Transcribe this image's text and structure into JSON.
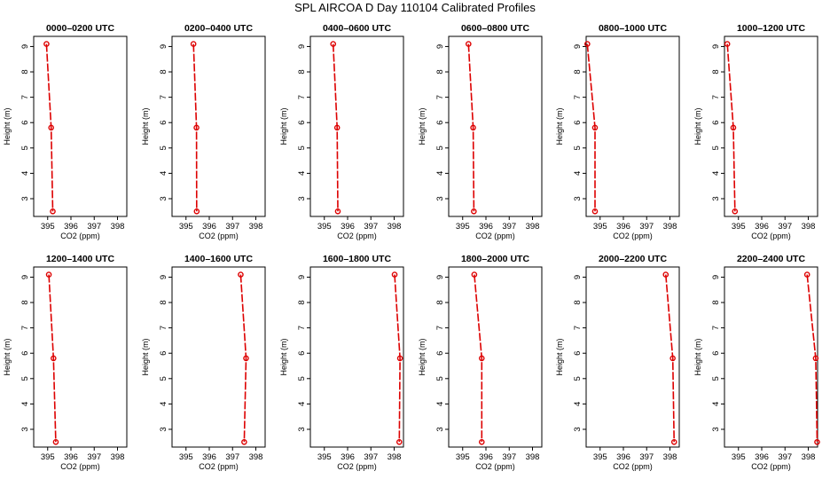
{
  "title": "SPL AIRCOA D  Day 110104  Calibrated Profiles",
  "colors": {
    "series": "#dd0000",
    "axis": "#000000",
    "background": "#ffffff"
  },
  "chart_data": [
    {
      "type": "line",
      "title": "0000–0200 UTC",
      "xlabel": "CO2 (ppm)",
      "ylabel": "Height (m)",
      "xlim": [
        394.4,
        398.4
      ],
      "ylim": [
        2.3,
        9.4
      ],
      "xticks": [
        395,
        396,
        397,
        398
      ],
      "yticks": [
        3,
        4,
        5,
        6,
        7,
        8,
        9
      ],
      "grid": false,
      "points": [
        {
          "x": 394.95,
          "y": 9.1
        },
        {
          "x": 395.15,
          "y": 5.8
        },
        {
          "x": 395.22,
          "y": 2.5
        }
      ]
    },
    {
      "type": "line",
      "title": "0200–0400 UTC",
      "xlabel": "CO2 (ppm)",
      "ylabel": "Height (m)",
      "xlim": [
        394.4,
        398.4
      ],
      "ylim": [
        2.3,
        9.4
      ],
      "xticks": [
        395,
        396,
        397,
        398
      ],
      "yticks": [
        3,
        4,
        5,
        6,
        7,
        8,
        9
      ],
      "grid": false,
      "points": [
        {
          "x": 395.32,
          "y": 9.1
        },
        {
          "x": 395.45,
          "y": 5.8
        },
        {
          "x": 395.46,
          "y": 2.5
        }
      ]
    },
    {
      "type": "line",
      "title": "0400–0600 UTC",
      "xlabel": "CO2 (ppm)",
      "ylabel": "Height (m)",
      "xlim": [
        394.4,
        398.4
      ],
      "ylim": [
        2.3,
        9.4
      ],
      "xticks": [
        395,
        396,
        397,
        398
      ],
      "yticks": [
        3,
        4,
        5,
        6,
        7,
        8,
        9
      ],
      "grid": false,
      "points": [
        {
          "x": 395.38,
          "y": 9.1
        },
        {
          "x": 395.55,
          "y": 5.8
        },
        {
          "x": 395.58,
          "y": 2.5
        }
      ]
    },
    {
      "type": "line",
      "title": "0600–0800 UTC",
      "xlabel": "CO2 (ppm)",
      "ylabel": "Height (m)",
      "xlim": [
        394.4,
        398.4
      ],
      "ylim": [
        2.3,
        9.4
      ],
      "xticks": [
        395,
        396,
        397,
        398
      ],
      "yticks": [
        3,
        4,
        5,
        6,
        7,
        8,
        9
      ],
      "grid": false,
      "points": [
        {
          "x": 395.25,
          "y": 9.1
        },
        {
          "x": 395.45,
          "y": 5.8
        },
        {
          "x": 395.48,
          "y": 2.5
        }
      ]
    },
    {
      "type": "line",
      "title": "0800–1000 UTC",
      "xlabel": "CO2 (ppm)",
      "ylabel": "Height (m)",
      "xlim": [
        394.4,
        398.4
      ],
      "ylim": [
        2.3,
        9.4
      ],
      "xticks": [
        395,
        396,
        397,
        398
      ],
      "yticks": [
        3,
        4,
        5,
        6,
        7,
        8,
        9
      ],
      "grid": false,
      "points": [
        {
          "x": 394.45,
          "y": 9.1
        },
        {
          "x": 394.78,
          "y": 5.8
        },
        {
          "x": 394.78,
          "y": 2.5
        }
      ]
    },
    {
      "type": "line",
      "title": "1000–1200 UTC",
      "xlabel": "CO2 (ppm)",
      "ylabel": "Height (m)",
      "xlim": [
        394.4,
        398.4
      ],
      "ylim": [
        2.3,
        9.4
      ],
      "xticks": [
        395,
        396,
        397,
        398
      ],
      "yticks": [
        3,
        4,
        5,
        6,
        7,
        8,
        9
      ],
      "grid": false,
      "points": [
        {
          "x": 394.52,
          "y": 9.1
        },
        {
          "x": 394.78,
          "y": 5.8
        },
        {
          "x": 394.85,
          "y": 2.5
        }
      ]
    },
    {
      "type": "line",
      "title": "1200–1400 UTC",
      "xlabel": "CO2 (ppm)",
      "ylabel": "Height (m)",
      "xlim": [
        394.4,
        398.4
      ],
      "ylim": [
        2.3,
        9.4
      ],
      "xticks": [
        395,
        396,
        397,
        398
      ],
      "yticks": [
        3,
        4,
        5,
        6,
        7,
        8,
        9
      ],
      "grid": false,
      "points": [
        {
          "x": 395.05,
          "y": 9.1
        },
        {
          "x": 395.25,
          "y": 5.8
        },
        {
          "x": 395.35,
          "y": 2.5
        }
      ]
    },
    {
      "type": "line",
      "title": "1400–1600 UTC",
      "xlabel": "CO2 (ppm)",
      "ylabel": "Height (m)",
      "xlim": [
        394.4,
        398.4
      ],
      "ylim": [
        2.3,
        9.4
      ],
      "xticks": [
        395,
        396,
        397,
        398
      ],
      "yticks": [
        3,
        4,
        5,
        6,
        7,
        8,
        9
      ],
      "grid": false,
      "points": [
        {
          "x": 397.35,
          "y": 9.1
        },
        {
          "x": 397.58,
          "y": 5.8
        },
        {
          "x": 397.5,
          "y": 2.5
        }
      ]
    },
    {
      "type": "line",
      "title": "1600–1800 UTC",
      "xlabel": "CO2 (ppm)",
      "ylabel": "Height (m)",
      "xlim": [
        394.4,
        398.4
      ],
      "ylim": [
        2.3,
        9.4
      ],
      "xticks": [
        395,
        396,
        397,
        398
      ],
      "yticks": [
        3,
        4,
        5,
        6,
        7,
        8,
        9
      ],
      "grid": false,
      "points": [
        {
          "x": 398.02,
          "y": 9.1
        },
        {
          "x": 398.25,
          "y": 5.8
        },
        {
          "x": 398.22,
          "y": 2.5
        }
      ]
    },
    {
      "type": "line",
      "title": "1800–2000 UTC",
      "xlabel": "CO2 (ppm)",
      "ylabel": "Height (m)",
      "xlim": [
        394.4,
        398.4
      ],
      "ylim": [
        2.3,
        9.4
      ],
      "xticks": [
        395,
        396,
        397,
        398
      ],
      "yticks": [
        3,
        4,
        5,
        6,
        7,
        8,
        9
      ],
      "grid": false,
      "points": [
        {
          "x": 395.5,
          "y": 9.1
        },
        {
          "x": 395.82,
          "y": 5.8
        },
        {
          "x": 395.82,
          "y": 2.5
        }
      ]
    },
    {
      "type": "line",
      "title": "2000–2200 UTC",
      "xlabel": "CO2 (ppm)",
      "ylabel": "Height (m)",
      "xlim": [
        394.4,
        398.4
      ],
      "ylim": [
        2.3,
        9.4
      ],
      "xticks": [
        395,
        396,
        397,
        398
      ],
      "yticks": [
        3,
        4,
        5,
        6,
        7,
        8,
        9
      ],
      "grid": false,
      "points": [
        {
          "x": 397.82,
          "y": 9.1
        },
        {
          "x": 398.12,
          "y": 5.8
        },
        {
          "x": 398.18,
          "y": 2.5
        }
      ]
    },
    {
      "type": "line",
      "title": "2200–2400 UTC",
      "xlabel": "CO2 (ppm)",
      "ylabel": "Height (m)",
      "xlim": [
        394.4,
        398.4
      ],
      "ylim": [
        2.3,
        9.4
      ],
      "xticks": [
        395,
        396,
        397,
        398
      ],
      "yticks": [
        3,
        4,
        5,
        6,
        7,
        8,
        9
      ],
      "grid": false,
      "points": [
        {
          "x": 397.95,
          "y": 9.1
        },
        {
          "x": 398.32,
          "y": 5.8
        },
        {
          "x": 398.38,
          "y": 2.5
        }
      ]
    }
  ]
}
